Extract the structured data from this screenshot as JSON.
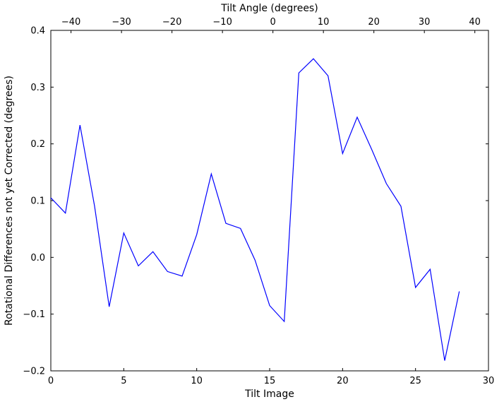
{
  "chart_data": {
    "type": "line",
    "title": "",
    "top_xlabel": "Tilt Angle (degrees)",
    "xlabel": "Tilt Image",
    "ylabel": "Rotational Differences not yet Corrected (degrees)",
    "x": [
      0,
      1,
      2,
      3,
      4,
      5,
      6,
      7,
      8,
      9,
      10,
      11,
      12,
      13,
      14,
      15,
      16,
      17,
      18,
      19,
      20,
      21,
      22,
      23,
      24,
      25,
      26,
      27,
      28
    ],
    "values": [
      0.105,
      0.078,
      0.233,
      0.09,
      -0.087,
      0.043,
      -0.015,
      0.01,
      -0.025,
      -0.033,
      0.04,
      0.147,
      0.06,
      0.051,
      -0.005,
      -0.085,
      -0.113,
      0.325,
      0.35,
      0.32,
      0.183,
      0.247,
      0.19,
      0.13,
      0.09,
      -0.053,
      -0.021,
      -0.182,
      -0.06
    ],
    "xlim": [
      0,
      30
    ],
    "ylim": [
      -0.2,
      0.4
    ],
    "top_xlim": [
      -44,
      42.7
    ],
    "x_ticks": [
      0,
      5,
      10,
      15,
      20,
      25,
      30
    ],
    "x_tick_labels": [
      "0",
      "5",
      "10",
      "15",
      "20",
      "25",
      "30"
    ],
    "y_ticks": [
      -0.2,
      -0.1,
      0.0,
      0.1,
      0.2,
      0.3,
      0.4
    ],
    "y_tick_labels": [
      "−0.2",
      "−0.1",
      "0.0",
      "0.1",
      "0.2",
      "0.3",
      "0.4"
    ],
    "top_x_ticks": [
      -40,
      -30,
      -20,
      -10,
      0,
      10,
      20,
      30,
      40
    ],
    "top_x_tick_labels": [
      "−40",
      "−30",
      "−20",
      "−10",
      "0",
      "10",
      "20",
      "30",
      "40"
    ],
    "line_color": "#0000ff",
    "frame_color": "#000000",
    "grid": false,
    "legend": false
  }
}
